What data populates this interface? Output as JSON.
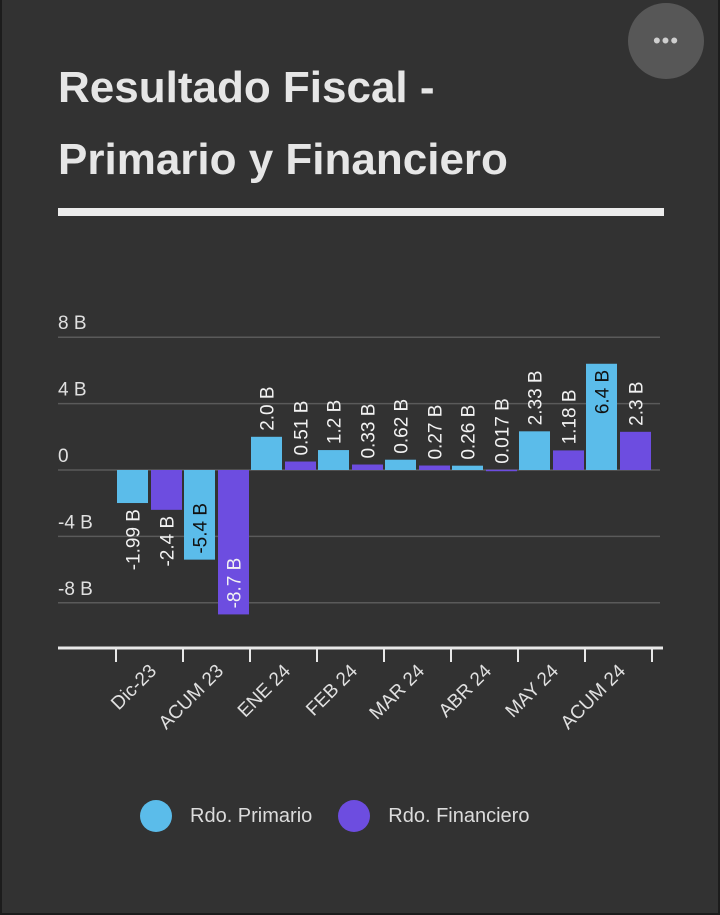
{
  "header": {
    "title_line1": "Resultado Fiscal -",
    "title_line2": "Primario y Financiero",
    "menu_icon": "more-horizontal-icon",
    "menu_glyph": "•••"
  },
  "colors": {
    "primario": "#5bbcea",
    "financiero": "#6d4de0",
    "axis_text": "#e0e0e0",
    "grid": "#5a5a5a",
    "baseline": "#e8e8e8"
  },
  "chart_data": {
    "type": "bar",
    "title": "Resultado Fiscal - Primario y Financiero",
    "categories": [
      "Dic-23",
      "ACUM 23",
      "ENE 24",
      "FEB 24",
      "MAR 24",
      "ABR 24",
      "MAY 24",
      "ACUM 24"
    ],
    "series": [
      {
        "name": "Rdo. Primario",
        "values": [
          -1.99,
          -5.4,
          2.0,
          1.2,
          0.62,
          0.26,
          2.33,
          6.4
        ],
        "labels": [
          "-1.99 B",
          "-5.4 B",
          "2.0 B",
          "1.2 B",
          "0.62 B",
          "0.26 B",
          "2.33 B",
          "6.4 B"
        ]
      },
      {
        "name": "Rdo. Financiero",
        "values": [
          -2.4,
          -8.7,
          0.51,
          0.33,
          0.27,
          0.017,
          1.18,
          2.3
        ],
        "labels": [
          "-2.4 B",
          "-8.7 B",
          "0.51 B",
          "0.33 B",
          "0.27 B",
          "0.017 B",
          "1.18 B",
          "2.3 B"
        ]
      }
    ],
    "yticks": [
      8,
      4,
      0,
      -4,
      -8
    ],
    "ytick_labels": [
      "8 B",
      "4 B",
      "0",
      "-4 B",
      "-8 B"
    ],
    "ylim": [
      -10,
      10
    ],
    "grid": true,
    "legend_position": "bottom"
  }
}
